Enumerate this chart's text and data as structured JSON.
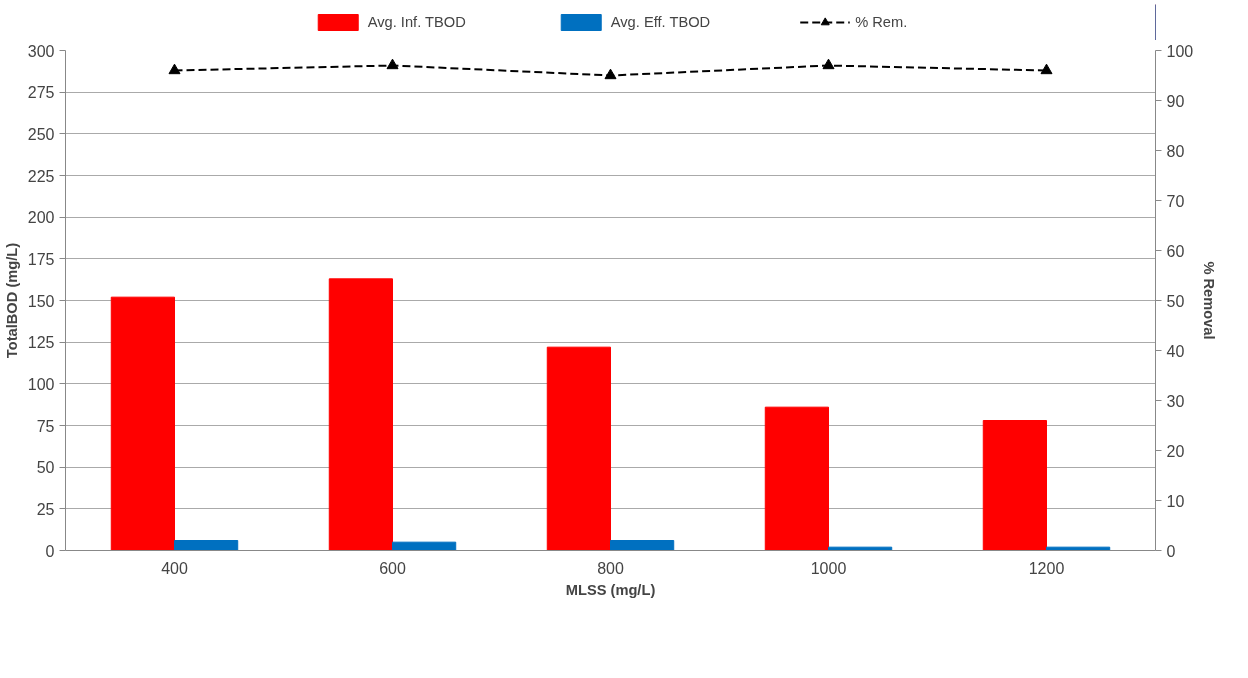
{
  "chart_data": {
    "type": "bar",
    "xlabel": "MLSS (mg/L)",
    "ylabel": "TotalBOD (mg/L)",
    "y2label": "% Removal",
    "categories": [
      "400",
      "600",
      "800",
      "1000",
      "1200"
    ],
    "series": [
      {
        "name": "Avg. Inf. TBOD",
        "color": "#ff0000",
        "values": [
          152,
          163,
          122,
          86,
          78
        ]
      },
      {
        "name": "Avg. Eff. TBOD",
        "color": "#0070c0",
        "values": [
          6,
          5,
          6,
          2,
          2
        ]
      },
      {
        "name": "% Rem.",
        "type": "line",
        "axis": "y2",
        "color": "#000000",
        "marker": "triangle",
        "line_style": "dashed",
        "values": [
          96,
          97,
          95,
          97,
          96
        ]
      }
    ],
    "ylim": [
      0,
      300
    ],
    "yticks": [
      0,
      25,
      50,
      75,
      100,
      125,
      150,
      175,
      200,
      225,
      250,
      275,
      300
    ],
    "y2lim": [
      0,
      100
    ],
    "y2ticks": [
      0,
      10,
      20,
      30,
      40,
      50,
      60,
      70,
      80,
      90,
      100
    ],
    "grid": "y",
    "legend": "top"
  }
}
